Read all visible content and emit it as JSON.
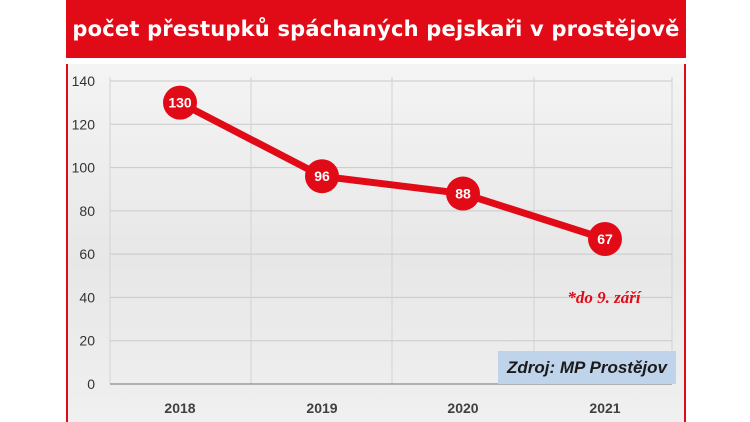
{
  "colors": {
    "accent": "#e10b17",
    "source_box": "#bfd3ea"
  },
  "title": "počet přestupků spáchaných pejskaři v prostějově",
  "source": "Zdroj: MP Prostějov",
  "footnote": "*do 9. září",
  "chart_data": {
    "type": "line",
    "title": "počet přestupků spáchaných pejskaři v prostějově",
    "xlabel": "",
    "ylabel": "",
    "categories": [
      "2018",
      "2019",
      "2020",
      "2021"
    ],
    "series": [
      {
        "values": [
          130,
          96,
          88,
          67
        ]
      }
    ],
    "data_labels": [
      "130",
      "96",
      "88",
      "67"
    ],
    "yticks": [
      "0",
      "20",
      "40",
      "60",
      "80",
      "100",
      "120",
      "140"
    ],
    "ylim": [
      0,
      140
    ],
    "grid": true,
    "annotation": "*do 9. září"
  }
}
